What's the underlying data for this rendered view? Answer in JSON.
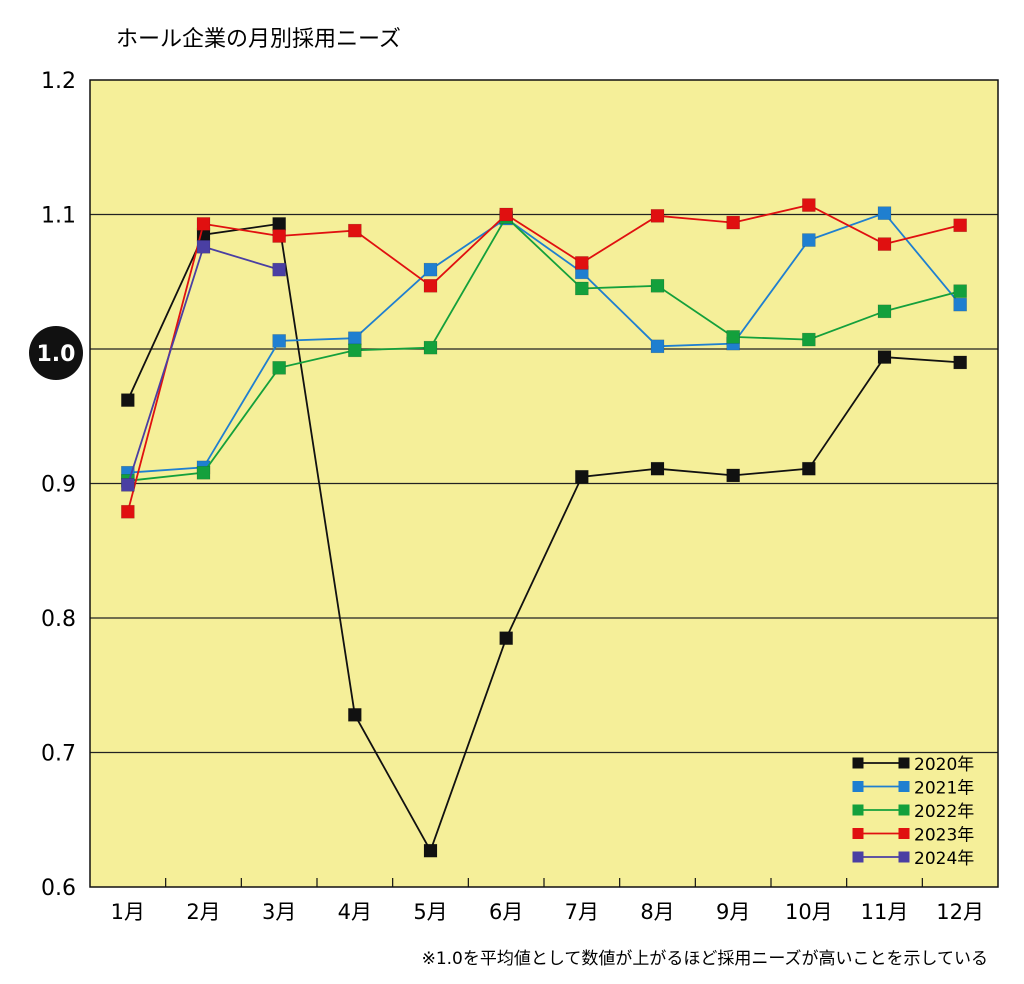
{
  "chart_data": {
    "type": "line",
    "title": "ホール企業の月別採用ニーズ",
    "note": "※1.0を平均値として数値が上がるほど採用ニーズが高いことを示している",
    "categories": [
      "1月",
      "2月",
      "3月",
      "4月",
      "5月",
      "6月",
      "7月",
      "8月",
      "9月",
      "10月",
      "11月",
      "12月"
    ],
    "ylim": [
      0.6,
      1.2
    ],
    "yticks": [
      "0.6",
      "0.7",
      "0.8",
      "0.9",
      "1.0",
      "1.1",
      "1.2"
    ],
    "highlight_tick": "1.0",
    "grid": "horizontal",
    "plot_background": "#f5ef99",
    "legend_position": "bottom-right",
    "series": [
      {
        "name": "2020年",
        "color": "#111111",
        "values": [
          0.962,
          1.085,
          1.093,
          0.728,
          0.627,
          0.785,
          0.905,
          0.911,
          0.906,
          0.911,
          0.994,
          0.99
        ]
      },
      {
        "name": "2021年",
        "color": "#1f7fd0",
        "values": [
          0.908,
          0.912,
          1.006,
          1.008,
          1.059,
          1.097,
          1.057,
          1.002,
          1.004,
          1.081,
          1.101,
          1.033
        ]
      },
      {
        "name": "2022年",
        "color": "#14a03c",
        "values": [
          0.902,
          0.908,
          0.986,
          0.999,
          1.001,
          1.098,
          1.045,
          1.047,
          1.009,
          1.007,
          1.028,
          1.043
        ]
      },
      {
        "name": "2023年",
        "color": "#e01010",
        "values": [
          0.879,
          1.093,
          1.084,
          1.088,
          1.047,
          1.1,
          1.064,
          1.099,
          1.094,
          1.107,
          1.078,
          1.092
        ]
      },
      {
        "name": "2024年",
        "color": "#4a3fa3",
        "values": [
          0.899,
          1.076,
          1.059,
          null,
          null,
          null,
          null,
          null,
          null,
          null,
          null,
          null
        ]
      }
    ]
  }
}
